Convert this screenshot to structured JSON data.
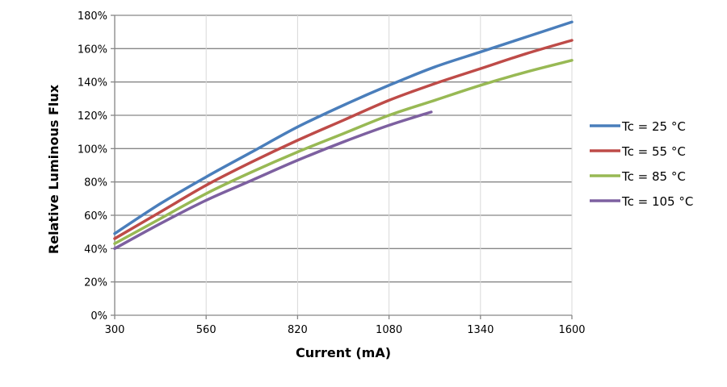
{
  "chart_data": {
    "type": "line",
    "title": "",
    "xlabel": "Current (mA)",
    "ylabel": "Relative Luminous Flux",
    "xlim": [
      300,
      1600
    ],
    "ylim": [
      0,
      180
    ],
    "x_ticks": [
      300,
      560,
      820,
      1080,
      1340,
      1600
    ],
    "y_ticks": [
      0,
      20,
      40,
      60,
      80,
      100,
      120,
      140,
      160,
      180
    ],
    "y_tick_labels": [
      "0%",
      "20%",
      "40%",
      "60%",
      "80%",
      "100%",
      "120%",
      "140%",
      "160%",
      "180%"
    ],
    "grid": true,
    "legend_position": "right",
    "series": [
      {
        "name": "Tc = 25 °C",
        "color": "#4a7ebb",
        "x": [
          300,
          430,
          560,
          690,
          820,
          950,
          1080,
          1210,
          1340,
          1470,
          1600
        ],
        "y": [
          49,
          67,
          83,
          98,
          113,
          126,
          138,
          149,
          158,
          167,
          176
        ]
      },
      {
        "name": "Tc = 55 °C",
        "color": "#be4b48",
        "x": [
          300,
          430,
          560,
          690,
          820,
          950,
          1080,
          1210,
          1340,
          1470,
          1600
        ],
        "y": [
          46,
          62,
          78,
          92,
          105,
          117,
          129,
          139,
          148,
          157,
          165
        ]
      },
      {
        "name": "Tc = 85 °C",
        "color": "#98b954",
        "x": [
          300,
          430,
          560,
          690,
          820,
          950,
          1080,
          1210,
          1340,
          1470,
          1600
        ],
        "y": [
          43,
          58,
          73,
          86,
          98,
          109,
          120,
          129,
          138,
          146,
          153
        ]
      },
      {
        "name": "Tc = 105 °C",
        "color": "#7d60a0",
        "x": [
          300,
          430,
          560,
          690,
          820,
          950,
          1080,
          1200
        ],
        "y": [
          40,
          55,
          69,
          81,
          93,
          104,
          114,
          122
        ]
      }
    ]
  }
}
